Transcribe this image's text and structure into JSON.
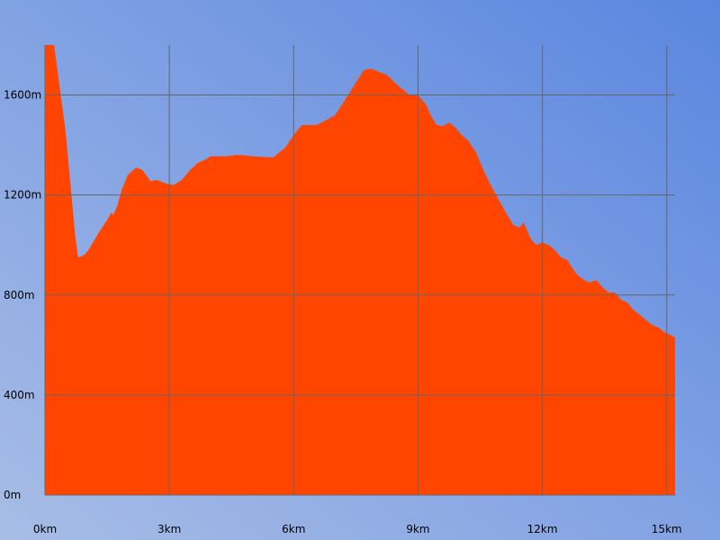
{
  "colors": {
    "fill": "#ff4500",
    "grid": "#666666",
    "bg_top_right": "#5a86e0",
    "bg_bottom_left": "#a8bde6"
  },
  "chart_data": {
    "type": "area",
    "title": "",
    "xlabel": "",
    "ylabel": "",
    "x_unit": "km",
    "y_unit": "m",
    "xlim": [
      0,
      15.2
    ],
    "ylim": [
      0,
      1800
    ],
    "grid": true,
    "x_ticks": [
      "0km",
      "3km",
      "6km",
      "9km",
      "12km",
      "15km"
    ],
    "y_ticks": [
      "0m",
      "400m",
      "800m",
      "1600m",
      "1200m"
    ],
    "x_tick_values": [
      0,
      3,
      6,
      9,
      12,
      15
    ],
    "y_tick_values": [
      0,
      400,
      800,
      1600,
      1200
    ],
    "x": [
      0,
      0.22,
      0.5,
      0.72,
      0.8,
      0.95,
      1.05,
      1.3,
      1.5,
      1.6,
      1.65,
      1.75,
      1.85,
      2.0,
      2.2,
      2.35,
      2.55,
      2.7,
      2.85,
      2.95,
      3.1,
      3.3,
      3.5,
      3.7,
      3.85,
      4.0,
      4.2,
      4.4,
      4.6,
      4.75,
      5.0,
      5.5,
      5.8,
      6.0,
      6.2,
      6.3,
      6.4,
      6.55,
      6.8,
      7.0,
      7.2,
      7.5,
      7.7,
      7.85,
      7.95,
      8.1,
      8.25,
      8.5,
      8.8,
      9.0,
      9.2,
      9.3,
      9.45,
      9.6,
      9.75,
      9.9,
      10.05,
      10.2,
      10.4,
      10.55,
      10.75,
      10.95,
      11.15,
      11.3,
      11.45,
      11.55,
      11.7,
      11.85,
      12.0,
      12.15,
      12.3,
      12.45,
      12.6,
      12.75,
      12.85,
      13.0,
      13.15,
      13.3,
      13.45,
      13.6,
      13.75,
      13.9,
      14.05,
      14.2,
      14.35,
      14.5,
      14.65,
      14.8,
      14.95,
      15.1,
      15.2
    ],
    "y": [
      1800,
      1800,
      1450,
      1050,
      950,
      960,
      980,
      1050,
      1100,
      1130,
      1120,
      1160,
      1220,
      1280,
      1310,
      1300,
      1255,
      1260,
      1250,
      1245,
      1240,
      1260,
      1300,
      1330,
      1340,
      1355,
      1355,
      1355,
      1360,
      1360,
      1355,
      1350,
      1390,
      1440,
      1480,
      1480,
      1480,
      1480,
      1500,
      1520,
      1570,
      1650,
      1700,
      1705,
      1700,
      1690,
      1680,
      1640,
      1600,
      1600,
      1560,
      1520,
      1480,
      1475,
      1490,
      1470,
      1440,
      1420,
      1370,
      1310,
      1240,
      1180,
      1120,
      1080,
      1070,
      1090,
      1030,
      1000,
      1010,
      1000,
      980,
      950,
      940,
      900,
      880,
      860,
      850,
      860,
      830,
      810,
      810,
      780,
      770,
      740,
      720,
      700,
      680,
      670,
      650,
      640,
      630
    ]
  }
}
